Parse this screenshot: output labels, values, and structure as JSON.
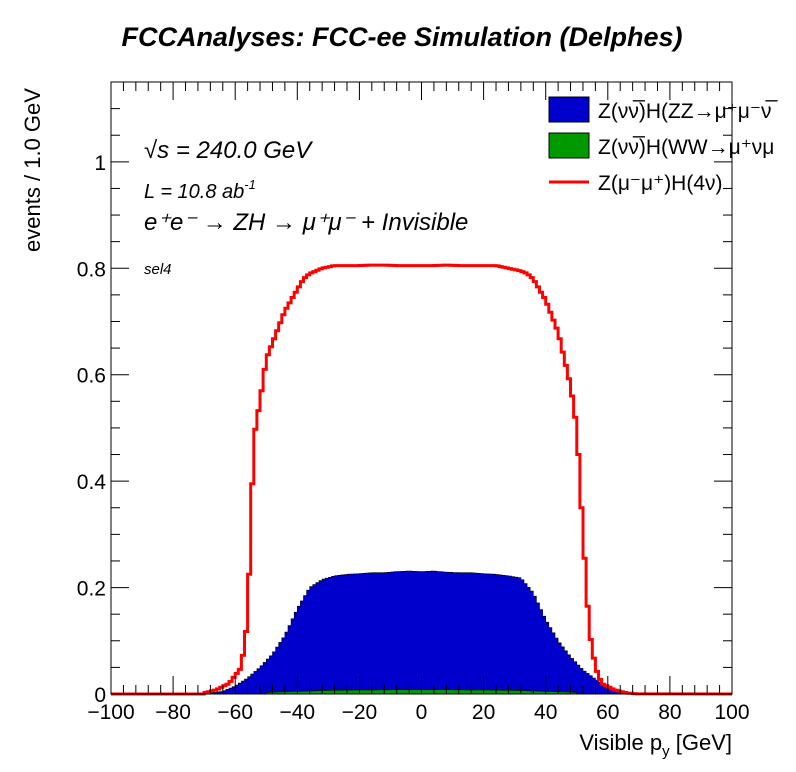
{
  "chart_data": {
    "type": "histogram",
    "title": "FCCAnalyses: FCC-ee Simulation (Delphes)",
    "xlabel_main": "Visible p",
    "xlabel_sub": "y",
    "xlabel_unit": " [GeV]",
    "ylabel": "events / 1.0 GeV",
    "xlim": [
      -100,
      100
    ],
    "ylim": [
      0,
      1.15
    ],
    "x_ticks": [
      -100,
      -80,
      -60,
      -40,
      -20,
      0,
      20,
      40,
      60,
      80,
      100
    ],
    "x_tick_labels": [
      "−100",
      "−80",
      "−60",
      "−40",
      "−20",
      "0",
      "20",
      "40",
      "60",
      "80",
      "100"
    ],
    "y_ticks": [
      0,
      0.2,
      0.4,
      0.6,
      0.8,
      1
    ],
    "y_tick_labels": [
      "0",
      "0.2",
      "0.4",
      "0.6",
      "0.8",
      "1"
    ],
    "annotations": {
      "sqrt_s": "√s = 240.0 GeV",
      "lumi": "L = 10.8 ab",
      "lumi_exp": "-1",
      "process": "e⁺e⁻ → ZH → μ⁺μ⁻ + Invisible",
      "selection": "sel4"
    },
    "legend_position": "top-right",
    "series": [
      {
        "name": "Z(νν̅)H(ZZ→μ⁺μ⁻ν̅",
        "style": "filled",
        "color": "#0000cc",
        "x": [
          -68,
          -64,
          -60,
          -56,
          -52,
          -48,
          -44,
          -40,
          -36,
          -32,
          -28,
          -24,
          -20,
          -16,
          -12,
          -8,
          -4,
          0,
          4,
          8,
          12,
          16,
          20,
          24,
          28,
          32,
          36,
          40,
          44,
          48,
          52,
          56,
          60,
          64,
          68,
          72
        ],
        "values": [
          0.002,
          0.005,
          0.015,
          0.03,
          0.05,
          0.075,
          0.11,
          0.16,
          0.2,
          0.215,
          0.222,
          0.225,
          0.226,
          0.228,
          0.228,
          0.23,
          0.231,
          0.23,
          0.231,
          0.229,
          0.228,
          0.228,
          0.226,
          0.225,
          0.222,
          0.218,
          0.19,
          0.14,
          0.1,
          0.07,
          0.045,
          0.028,
          0.014,
          0.005,
          0.002,
          0
        ]
      },
      {
        "name": "Z(νν̅)H(WW→μ⁺νμ",
        "style": "filled",
        "color": "#009900",
        "x": [
          -50,
          -30,
          -10,
          10,
          30,
          50
        ],
        "values": [
          0.003,
          0.007,
          0.008,
          0.008,
          0.007,
          0.003
        ]
      },
      {
        "name": "Z(μ⁻μ⁺)H(4ν)",
        "style": "line",
        "color": "#ff0000",
        "x": [
          -70,
          -66,
          -62,
          -58,
          -56,
          -54,
          -52,
          -50,
          -48,
          -46,
          -44,
          -42,
          -40,
          -38,
          -36,
          -34,
          -32,
          -28,
          -24,
          -20,
          -16,
          -12,
          -8,
          -4,
          0,
          4,
          8,
          12,
          16,
          20,
          24,
          28,
          32,
          34,
          36,
          38,
          40,
          42,
          44,
          46,
          48,
          50,
          52,
          54,
          56,
          58,
          62,
          66,
          70
        ],
        "values": [
          0.002,
          0.008,
          0.02,
          0.05,
          0.14,
          0.48,
          0.55,
          0.63,
          0.66,
          0.69,
          0.72,
          0.74,
          0.76,
          0.78,
          0.79,
          0.795,
          0.8,
          0.805,
          0.805,
          0.805,
          0.806,
          0.806,
          0.805,
          0.805,
          0.805,
          0.805,
          0.806,
          0.805,
          0.805,
          0.805,
          0.805,
          0.8,
          0.795,
          0.79,
          0.78,
          0.76,
          0.74,
          0.71,
          0.68,
          0.63,
          0.58,
          0.5,
          0.3,
          0.12,
          0.05,
          0.02,
          0.008,
          0.002,
          0
        ]
      }
    ]
  }
}
